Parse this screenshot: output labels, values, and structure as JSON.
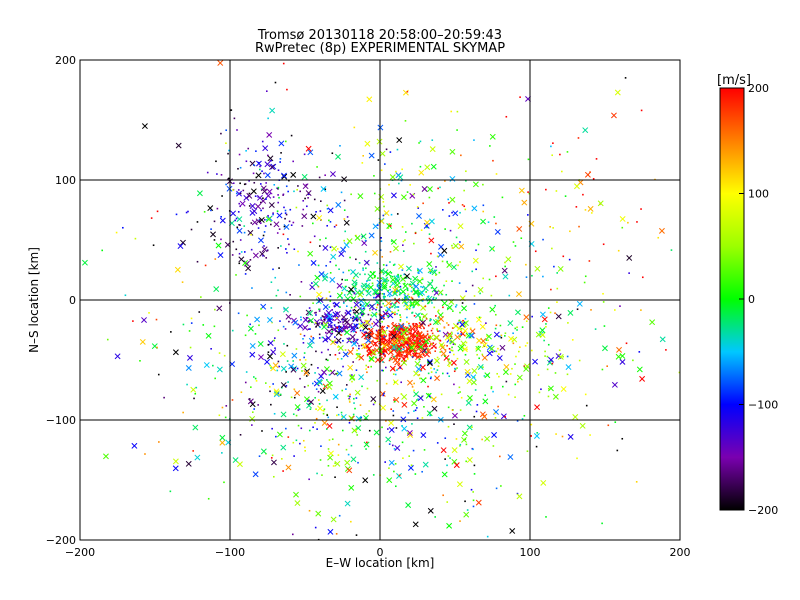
{
  "chart_data": {
    "type": "scatter",
    "title": "Tromsø 20130118 20:58:00–20:59:43",
    "subtitle": "RwPretec (8p) EXPERIMENTAL SKYMAP",
    "xlabel": "E–W location [km]",
    "ylabel": "N–S location [km]",
    "xlim": [
      -200,
      200
    ],
    "ylim": [
      -200,
      200
    ],
    "xticks": [
      -200,
      -100,
      0,
      100,
      200
    ],
    "yticks": [
      -200,
      -100,
      0,
      100,
      200
    ],
    "grid": true,
    "colorbar": {
      "label": "[m/s]",
      "range": [
        -200,
        200
      ],
      "ticks": [
        -200,
        -100,
        0,
        100,
        200
      ]
    },
    "markers": [
      "dot",
      "cross"
    ],
    "clusters": [
      {
        "x": 15,
        "y": -35,
        "sx": 12,
        "sy": 8,
        "v": 190,
        "dv": 15,
        "n": 420
      },
      {
        "x": 5,
        "y": 10,
        "sx": 18,
        "sy": 12,
        "v": -20,
        "dv": 30,
        "n": 260
      },
      {
        "x": -25,
        "y": -20,
        "sx": 14,
        "sy": 10,
        "v": -140,
        "dv": 40,
        "n": 180
      },
      {
        "x": -75,
        "y": 80,
        "sx": 22,
        "sy": 30,
        "v": -150,
        "dv": 50,
        "n": 240
      },
      {
        "x": 40,
        "y": -30,
        "sx": 30,
        "sy": 18,
        "v": 40,
        "dv": 80,
        "n": 220
      },
      {
        "x": 0,
        "y": -90,
        "sx": 55,
        "sy": 45,
        "v": 20,
        "dv": 90,
        "n": 380
      },
      {
        "x": 10,
        "y": 60,
        "sx": 45,
        "sy": 40,
        "v": 10,
        "dv": 80,
        "n": 200
      },
      {
        "x": -50,
        "y": -60,
        "sx": 40,
        "sy": 40,
        "v": -60,
        "dv": 100,
        "n": 220
      },
      {
        "x": 120,
        "y": 60,
        "sx": 40,
        "sy": 50,
        "v": 140,
        "dv": 80,
        "n": 70
      },
      {
        "x": 80,
        "y": -40,
        "sx": 50,
        "sy": 40,
        "v": 20,
        "dv": 70,
        "n": 140
      },
      {
        "x": 0,
        "y": 0,
        "sx": 120,
        "sy": 120,
        "v": 0,
        "dv": 150,
        "n": 280
      }
    ]
  }
}
